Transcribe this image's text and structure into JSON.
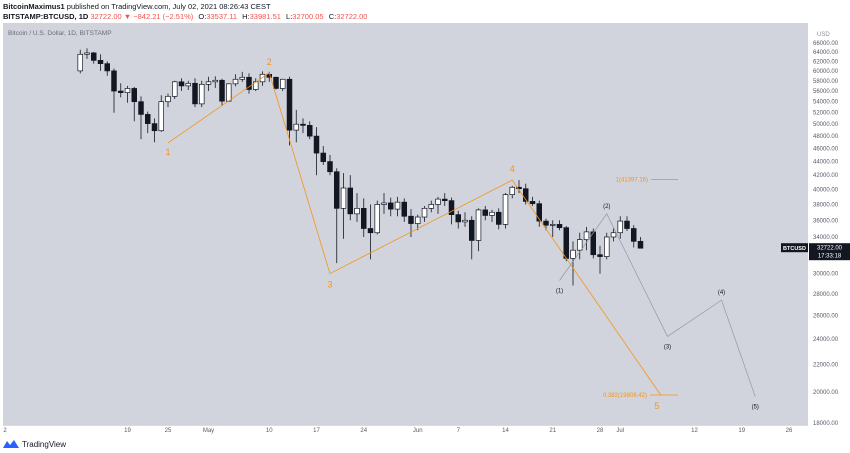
{
  "header": {
    "author": "BitcoinMaximus1",
    "published": "published on TradingView.com, July 02, 2021 08:26:43 CEST",
    "symbol": "BITSTAMP:BTCUSD, 1D",
    "change": "32722.00 ▼ −842.21 (−2.51%)",
    "o_label": "O:",
    "o_value": "33537.11",
    "h_label": "H:",
    "h_value": "33981.51",
    "l_label": "L:",
    "l_value": "32700.05",
    "c_label": "C:",
    "c_value": "32722.00"
  },
  "footer": {
    "brand": "TradingView"
  },
  "colors": {
    "plot_bg": "#d1d4dc",
    "wave": "#f7931a",
    "projection": "#9598a1",
    "candle_up": "#ffffff",
    "candle_down": "#131722",
    "price_tag_bg": "#131722"
  },
  "chart_data": {
    "type": "candlestick",
    "watermark": "Bitcoin / U.S. Dollar, 1D, BITSTAMP",
    "y_unit": "USD",
    "y_scale": "log",
    "ylim": [
      16000,
      68000
    ],
    "y_ticks": [
      18000,
      20000,
      22000,
      24000,
      26000,
      28000,
      30000,
      32000,
      34000,
      36000,
      38000,
      40000,
      42000,
      44000,
      46000,
      48000,
      50000,
      52000,
      54000,
      56000,
      58000,
      60000,
      62000,
      64000,
      66000
    ],
    "x_ticks": [
      {
        "date": "2021-04-19",
        "label": "19"
      },
      {
        "date": "2021-04-25",
        "label": "25"
      },
      {
        "date": "2021-05-01",
        "label": "May"
      },
      {
        "date": "2021-05-10",
        "label": "10"
      },
      {
        "date": "2021-05-17",
        "label": "17"
      },
      {
        "date": "2021-05-24",
        "label": "24"
      },
      {
        "date": "2021-06-01",
        "label": "Jun"
      },
      {
        "date": "2021-06-07",
        "label": "7"
      },
      {
        "date": "2021-06-14",
        "label": "14"
      },
      {
        "date": "2021-06-21",
        "label": "21"
      },
      {
        "date": "2021-06-28",
        "label": "28"
      },
      {
        "date": "2021-07-01",
        "label": "Jul"
      },
      {
        "date": "2021-07-12",
        "label": "12"
      },
      {
        "date": "2021-07-19",
        "label": "19"
      },
      {
        "date": "2021-07-26",
        "label": "26"
      }
    ],
    "x_first_label": "2",
    "candles_start": "2021-04-12",
    "candles": [
      [
        60000,
        64500,
        59500,
        63500
      ],
      [
        63500,
        64800,
        62500,
        63800
      ],
      [
        63800,
        64000,
        61500,
        62200
      ],
      [
        62200,
        63500,
        60000,
        61500
      ],
      [
        61500,
        62000,
        59000,
        60000
      ],
      [
        60000,
        60500,
        52000,
        56000
      ],
      [
        56000,
        57500,
        54800,
        55700
      ],
      [
        55700,
        57000,
        53800,
        56500
      ],
      [
        56500,
        56800,
        50500,
        54000
      ],
      [
        54000,
        55000,
        47500,
        51700
      ],
      [
        51700,
        52200,
        48500,
        50100
      ],
      [
        50100,
        51000,
        47000,
        48900
      ],
      [
        48900,
        55200,
        48700,
        54000
      ],
      [
        54000,
        55500,
        53000,
        55000
      ],
      [
        55000,
        58000,
        54500,
        57800
      ],
      [
        57800,
        58500,
        56000,
        57000
      ],
      [
        57000,
        58000,
        56200,
        57500
      ],
      [
        57500,
        58500,
        53000,
        53600
      ],
      [
        53600,
        58000,
        53000,
        57300
      ],
      [
        57300,
        58800,
        56000,
        57800
      ],
      [
        57800,
        58900,
        56600,
        58100
      ],
      [
        58100,
        58400,
        53200,
        54100
      ],
      [
        54100,
        57500,
        54000,
        57400
      ],
      [
        57400,
        59300,
        56900,
        58300
      ],
      [
        58300,
        59800,
        57800,
        58700
      ],
      [
        58700,
        59500,
        55500,
        56300
      ],
      [
        56300,
        58500,
        56000,
        57800
      ],
      [
        57800,
        59900,
        57000,
        59300
      ],
      [
        59300,
        59800,
        57800,
        58700
      ],
      [
        58700,
        58800,
        56300,
        56500
      ],
      [
        56500,
        58400,
        56000,
        58300
      ],
      [
        58300,
        58800,
        46500,
        49000
      ],
      [
        49000,
        52500,
        47000,
        50000
      ],
      [
        50000,
        51000,
        48500,
        49800
      ],
      [
        49800,
        50500,
        47500,
        48000
      ],
      [
        48000,
        49500,
        42000,
        45300
      ],
      [
        45300,
        46400,
        43500,
        44000
      ],
      [
        44000,
        45000,
        42000,
        42500
      ],
      [
        42500,
        43000,
        31100,
        37500
      ],
      [
        37500,
        42300,
        33800,
        40200
      ],
      [
        40200,
        42000,
        36000,
        36800
      ],
      [
        36800,
        39500,
        35800,
        37500
      ],
      [
        37500,
        38800,
        34000,
        35000
      ],
      [
        35000,
        38000,
        31500,
        34500
      ],
      [
        34500,
        38500,
        34300,
        38000
      ],
      [
        38000,
        39500,
        36800,
        38200
      ],
      [
        38200,
        38900,
        36500,
        37400
      ],
      [
        37400,
        39000,
        36500,
        38300
      ],
      [
        38300,
        38800,
        35800,
        36500
      ],
      [
        36500,
        37400,
        34000,
        35600
      ],
      [
        35600,
        36700,
        34800,
        36400
      ],
      [
        36400,
        37800,
        35800,
        37500
      ],
      [
        37500,
        38500,
        37000,
        38000
      ],
      [
        38000,
        39000,
        36800,
        38700
      ],
      [
        38700,
        39500,
        37800,
        38500
      ],
      [
        38500,
        38900,
        35500,
        36700
      ],
      [
        36700,
        37200,
        35000,
        35800
      ],
      [
        35800,
        37000,
        35200,
        36000
      ],
      [
        36000,
        36500,
        31500,
        33600
      ],
      [
        33600,
        37500,
        32400,
        37300
      ],
      [
        37300,
        37800,
        36000,
        36600
      ],
      [
        36600,
        37300,
        35800,
        37000
      ],
      [
        37000,
        37500,
        34900,
        35500
      ],
      [
        35500,
        39500,
        35000,
        39300
      ],
      [
        39300,
        40500,
        38800,
        40300
      ],
      [
        40300,
        41300,
        39500,
        40100
      ],
      [
        40100,
        40800,
        38000,
        38400
      ],
      [
        38400,
        39000,
        37800,
        38100
      ],
      [
        38100,
        38500,
        35200,
        35900
      ],
      [
        35900,
        36200,
        34800,
        35400
      ],
      [
        35400,
        36000,
        34000,
        35500
      ],
      [
        35500,
        36000,
        34800,
        35100
      ],
      [
        35100,
        35300,
        31300,
        31600
      ],
      [
        31600,
        33500,
        28800,
        32500
      ],
      [
        32500,
        34500,
        31500,
        33700
      ],
      [
        33700,
        35200,
        32500,
        34600
      ],
      [
        34600,
        35000,
        31600,
        32000
      ],
      [
        32000,
        33000,
        30000,
        31800
      ],
      [
        31800,
        34500,
        31500,
        34000
      ],
      [
        34000,
        35000,
        33500,
        34500
      ],
      [
        34500,
        36500,
        33800,
        35900
      ],
      [
        35900,
        36500,
        34700,
        35000
      ],
      [
        35000,
        35400,
        32800,
        33500
      ],
      [
        33500,
        34000,
        32700,
        32722
      ]
    ],
    "waves": [
      {
        "label": "1",
        "date": "2021-04-25",
        "price": 46900
      },
      {
        "label": "2",
        "date": "2021-05-10",
        "price": 59600
      },
      {
        "label": "3",
        "date": "2021-05-19",
        "price": 30000
      },
      {
        "label": "4",
        "date": "2021-06-15",
        "price": 41300
      },
      {
        "label": "5",
        "date": "2021-07-07",
        "price": 19806.42
      }
    ],
    "projection": [
      {
        "label": "(1)",
        "date": "2021-06-22",
        "price": 29300
      },
      {
        "label": "(2)",
        "date": "2021-06-29",
        "price": 36800
      },
      {
        "label": "(3)",
        "date": "2021-07-08",
        "price": 24200
      },
      {
        "label": "(4)",
        "date": "2021-07-16",
        "price": 27400
      },
      {
        "label": "(5)",
        "date": "2021-07-21",
        "price": 19700
      }
    ],
    "fib_levels": [
      {
        "label": "1(41397.16)",
        "price": 41397.16
      },
      {
        "label": "0.382(19806.42)",
        "price": 19806.42
      }
    ],
    "last_price": {
      "symbol": "BTCUSD",
      "price": "32722.00",
      "countdown": "17:33:18"
    }
  }
}
